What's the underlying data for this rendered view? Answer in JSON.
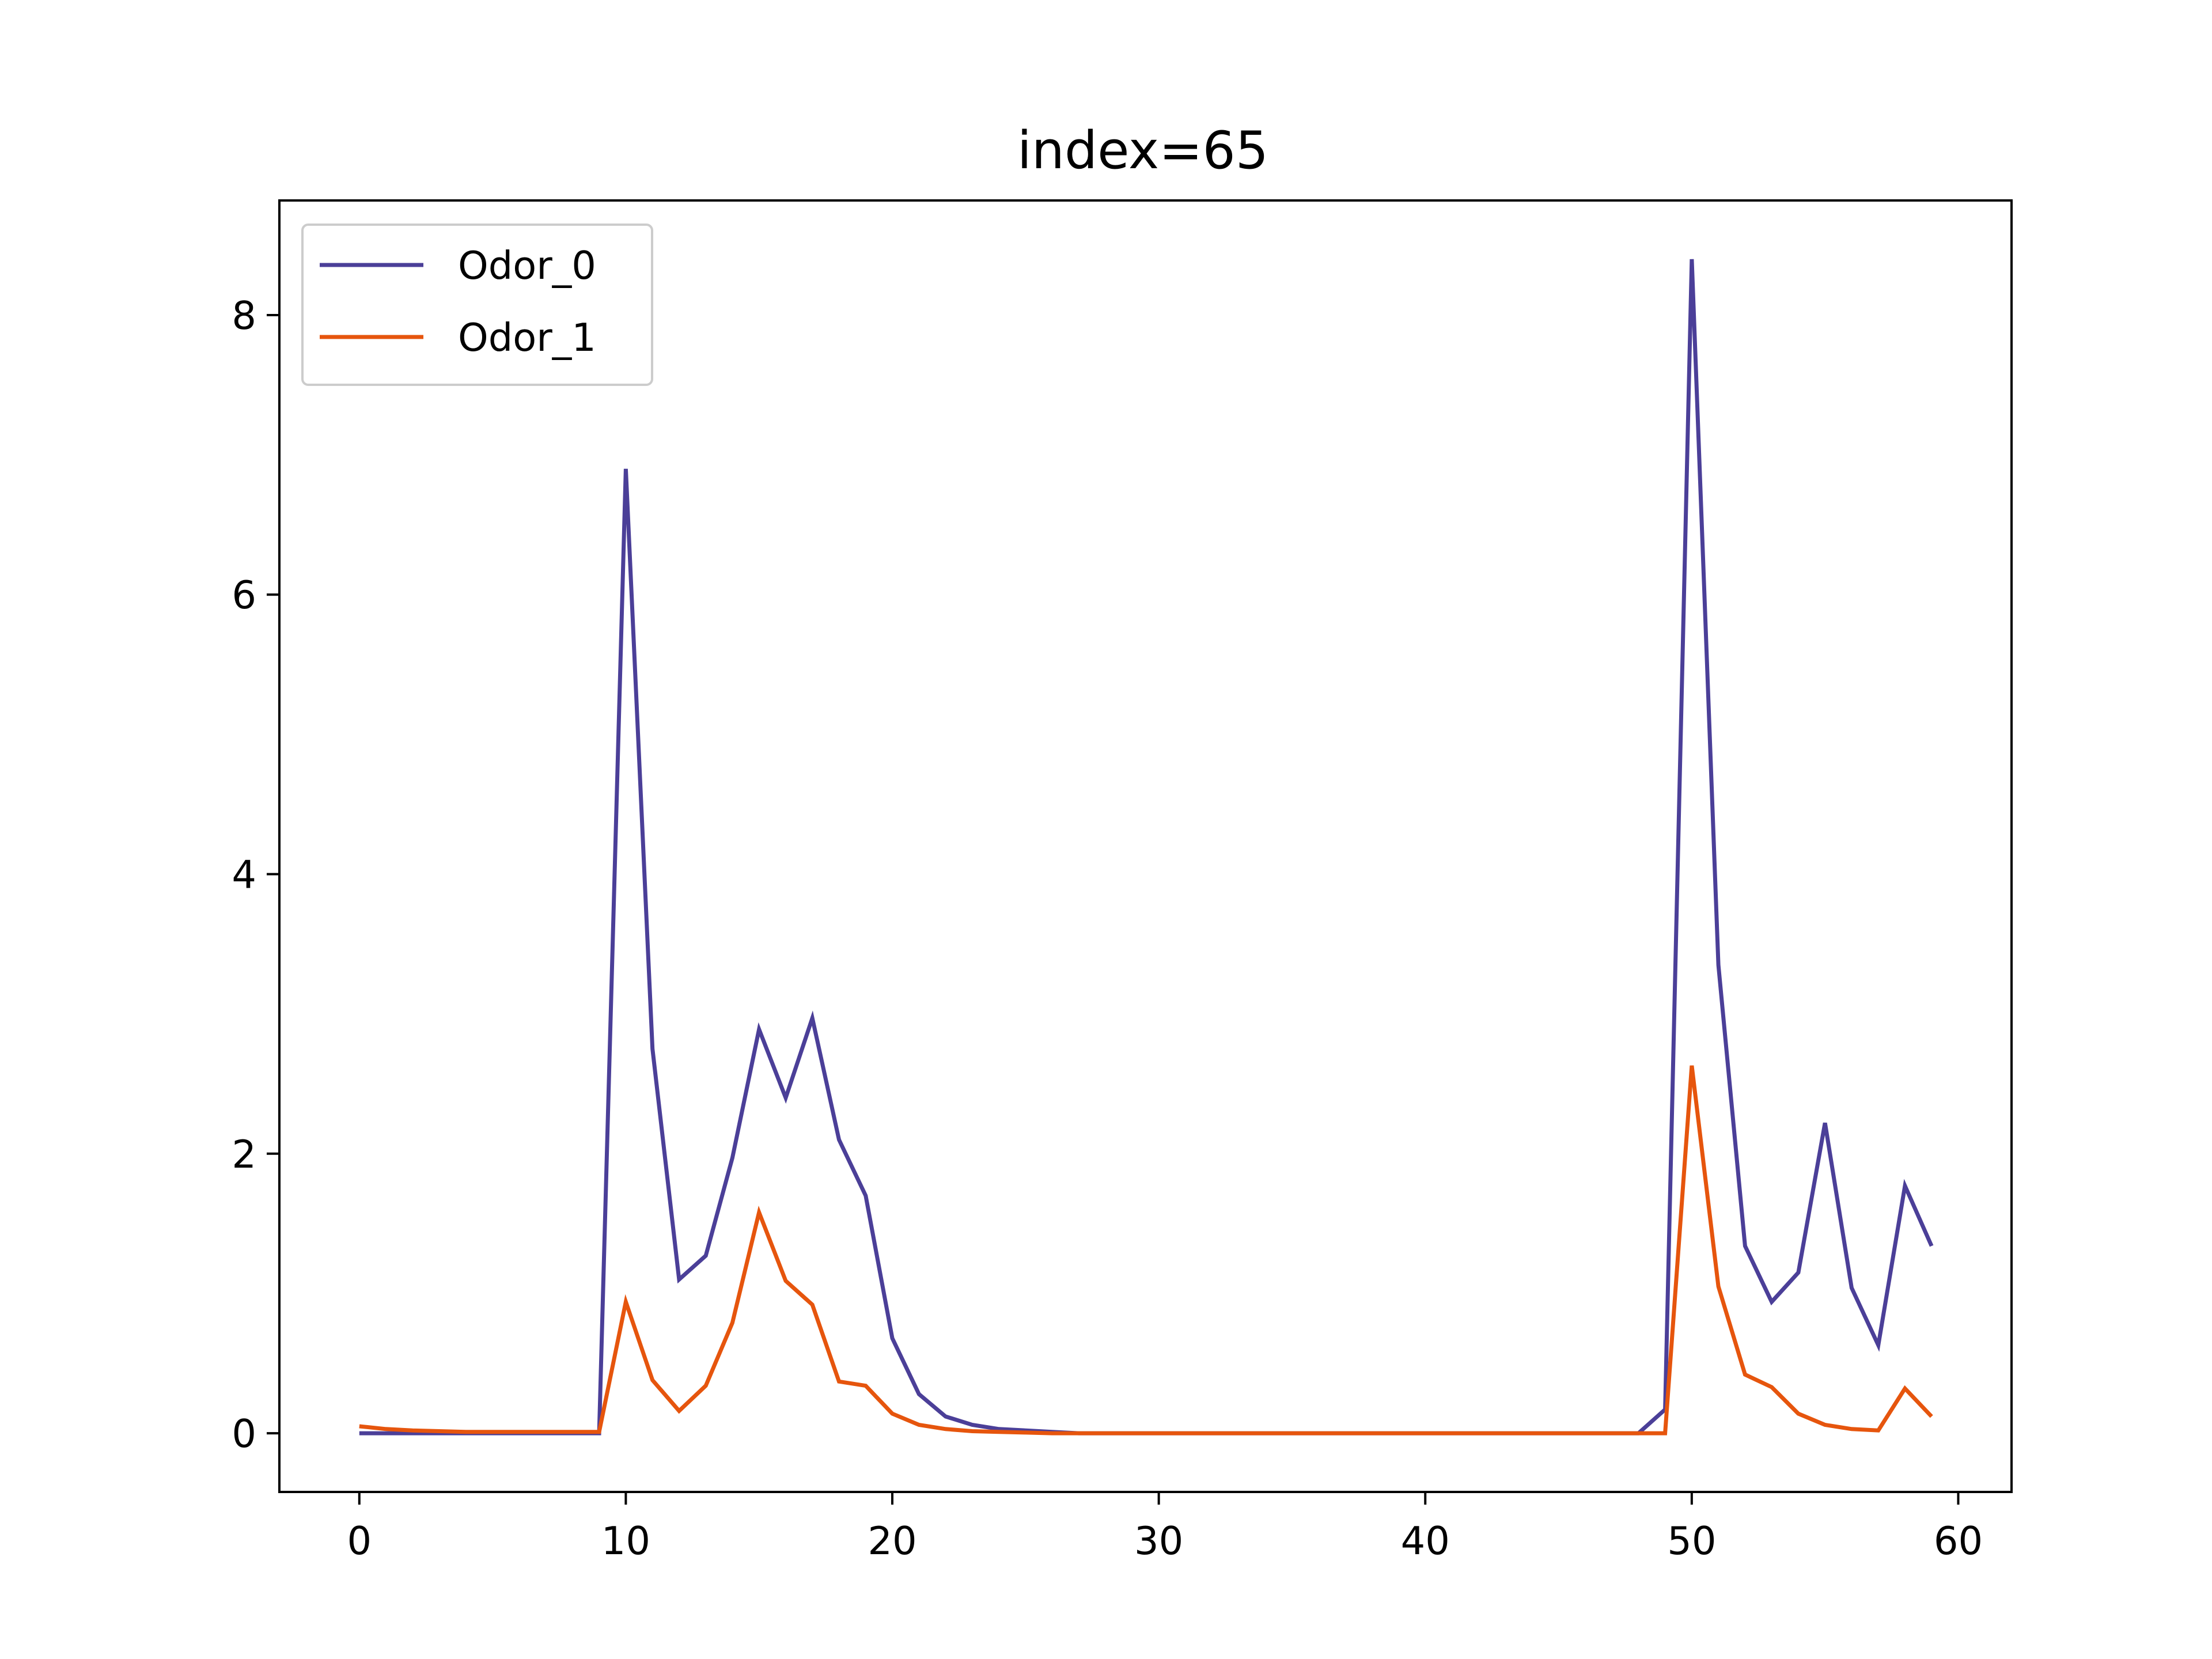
{
  "chart_data": {
    "type": "line",
    "title": "index=65",
    "xlabel": "",
    "ylabel": "",
    "xlim": [
      -3,
      62
    ],
    "ylim": [
      -0.42,
      8.82
    ],
    "xticks": [
      0,
      10,
      20,
      30,
      40,
      50,
      60
    ],
    "yticks": [
      0,
      2,
      4,
      6,
      8
    ],
    "grid": false,
    "legend_position": "top-left",
    "series": [
      {
        "name": "Odor_0",
        "color": "#4b3f98",
        "x": [
          0,
          1,
          2,
          3,
          4,
          5,
          6,
          7,
          8,
          9,
          10,
          11,
          12,
          13,
          14,
          15,
          16,
          17,
          18,
          19,
          20,
          21,
          22,
          23,
          24,
          25,
          26,
          27,
          28,
          29,
          30,
          31,
          32,
          33,
          34,
          35,
          36,
          37,
          38,
          39,
          40,
          41,
          42,
          43,
          44,
          45,
          46,
          47,
          48,
          49,
          50,
          51,
          52,
          53,
          54,
          55,
          56,
          57,
          58,
          59
        ],
        "values": [
          0,
          0,
          0,
          0,
          0,
          0,
          0,
          0,
          0,
          0,
          6.9,
          2.75,
          1.1,
          1.27,
          1.97,
          2.89,
          2.4,
          2.97,
          2.1,
          1.7,
          0.68,
          0.28,
          0.12,
          0.06,
          0.03,
          0.02,
          0.01,
          0,
          0,
          0,
          0,
          0,
          0,
          0,
          0,
          0,
          0,
          0,
          0,
          0,
          0,
          0,
          0,
          0,
          0,
          0,
          0,
          0,
          0,
          0.17,
          8.4,
          3.35,
          1.34,
          0.94,
          1.15,
          2.22,
          1.04,
          0.63,
          1.77,
          1.34
        ]
      },
      {
        "name": "Odor_1",
        "color": "#e6550d",
        "x": [
          0,
          1,
          2,
          3,
          4,
          5,
          6,
          7,
          8,
          9,
          10,
          11,
          12,
          13,
          14,
          15,
          16,
          17,
          18,
          19,
          20,
          21,
          22,
          23,
          24,
          25,
          26,
          27,
          28,
          29,
          30,
          31,
          32,
          33,
          34,
          35,
          36,
          37,
          38,
          39,
          40,
          41,
          42,
          43,
          44,
          45,
          46,
          47,
          48,
          49,
          50,
          51,
          52,
          53,
          54,
          55,
          56,
          57,
          58,
          59
        ],
        "values": [
          0.05,
          0.03,
          0.02,
          0.015,
          0.01,
          0.01,
          0.01,
          0.01,
          0.01,
          0.01,
          0.94,
          0.38,
          0.16,
          0.34,
          0.79,
          1.58,
          1.09,
          0.92,
          0.37,
          0.34,
          0.14,
          0.06,
          0.03,
          0.015,
          0.01,
          0.005,
          0,
          0,
          0,
          0,
          0,
          0,
          0,
          0,
          0,
          0,
          0,
          0,
          0,
          0,
          0,
          0,
          0,
          0,
          0,
          0,
          0,
          0,
          0,
          0,
          2.63,
          1.05,
          0.42,
          0.33,
          0.14,
          0.06,
          0.03,
          0.02,
          0.32,
          0.12
        ]
      }
    ]
  }
}
